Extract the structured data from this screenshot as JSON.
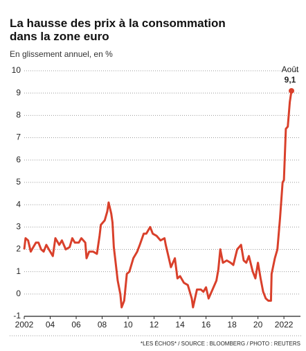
{
  "chart_data": {
    "type": "line",
    "title": "La hausse des prix à la consommation dans la zone euro",
    "subtitle": "En glissement annuel, en %",
    "source": "*LES ÉCHOS* / SOURCE : BLOOMBERG / PHOTO : REUTERS",
    "end_labels": [
      "Août",
      "9,1"
    ],
    "color": "#d9402b",
    "x": [
      2002.0,
      2002.1,
      2002.3,
      2002.5,
      2002.7,
      2002.9,
      2003.1,
      2003.3,
      2003.5,
      2003.7,
      2003.9,
      2004.2,
      2004.4,
      2004.7,
      2004.9,
      2005.2,
      2005.5,
      2005.7,
      2005.9,
      2006.2,
      2006.4,
      2006.7,
      2006.8,
      2007.0,
      2007.3,
      2007.6,
      2007.8,
      2007.9,
      2008.2,
      2008.4,
      2008.5,
      2008.7,
      2008.8,
      2008.9,
      2009.0,
      2009.2,
      2009.4,
      2009.5,
      2009.7,
      2009.9,
      2010.1,
      2010.4,
      2010.7,
      2010.9,
      2011.2,
      2011.4,
      2011.7,
      2011.9,
      2012.2,
      2012.5,
      2012.8,
      2012.9,
      2013.1,
      2013.3,
      2013.6,
      2013.8,
      2014.0,
      2014.3,
      2014.6,
      2014.9,
      2015.0,
      2015.3,
      2015.6,
      2015.8,
      2016.0,
      2016.2,
      2016.5,
      2016.8,
      2016.95,
      2017.1,
      2017.3,
      2017.6,
      2017.9,
      2018.1,
      2018.4,
      2018.7,
      2018.9,
      2019.1,
      2019.3,
      2019.6,
      2019.8,
      2020.0,
      2020.2,
      2020.4,
      2020.6,
      2020.8,
      2021.0,
      2021.05,
      2021.3,
      2021.5,
      2021.7,
      2021.9,
      2022.0,
      2022.15,
      2022.3,
      2022.45,
      2022.58
    ],
    "values": [
      2.0,
      2.5,
      2.4,
      1.9,
      2.1,
      2.3,
      2.3,
      2.0,
      1.9,
      2.2,
      2.0,
      1.7,
      2.5,
      2.2,
      2.4,
      2.0,
      2.1,
      2.5,
      2.3,
      2.3,
      2.5,
      2.3,
      1.6,
      1.9,
      1.9,
      1.8,
      2.6,
      3.1,
      3.3,
      3.7,
      4.1,
      3.6,
      3.2,
      2.1,
      1.6,
      0.6,
      0.0,
      -0.6,
      -0.3,
      0.9,
      1.0,
      1.6,
      1.9,
      2.2,
      2.7,
      2.7,
      3.0,
      2.7,
      2.6,
      2.4,
      2.5,
      2.2,
      1.7,
      1.2,
      1.6,
      0.7,
      0.8,
      0.5,
      0.4,
      -0.2,
      -0.6,
      0.2,
      0.2,
      0.1,
      0.3,
      -0.2,
      0.2,
      0.6,
      1.1,
      2.0,
      1.4,
      1.5,
      1.4,
      1.3,
      2.0,
      2.2,
      1.5,
      1.4,
      1.7,
      1.0,
      0.7,
      1.4,
      0.7,
      0.1,
      -0.2,
      -0.3,
      -0.3,
      0.9,
      1.6,
      2.0,
      3.4,
      5.0,
      5.1,
      7.4,
      7.5,
      8.6,
      9.1
    ],
    "xlim": [
      2002,
      2022.9
    ],
    "ylim": [
      -1,
      10
    ],
    "yticks": [
      -1,
      0,
      1,
      2,
      3,
      4,
      5,
      6,
      7,
      8,
      9,
      10
    ],
    "xticks": [
      2002,
      {
        "value": 2004,
        "label": "04"
      },
      {
        "value": 2006,
        "label": "06"
      },
      {
        "value": 2008,
        "label": "08"
      },
      {
        "value": 2010,
        "label": "10"
      },
      {
        "value": 2012,
        "label": "12"
      },
      {
        "value": 2014,
        "label": "14"
      },
      {
        "value": 2016,
        "label": "16"
      },
      {
        "value": 2018,
        "label": "18"
      },
      {
        "value": 2020,
        "label": "20"
      },
      2022
    ],
    "grid": true
  }
}
